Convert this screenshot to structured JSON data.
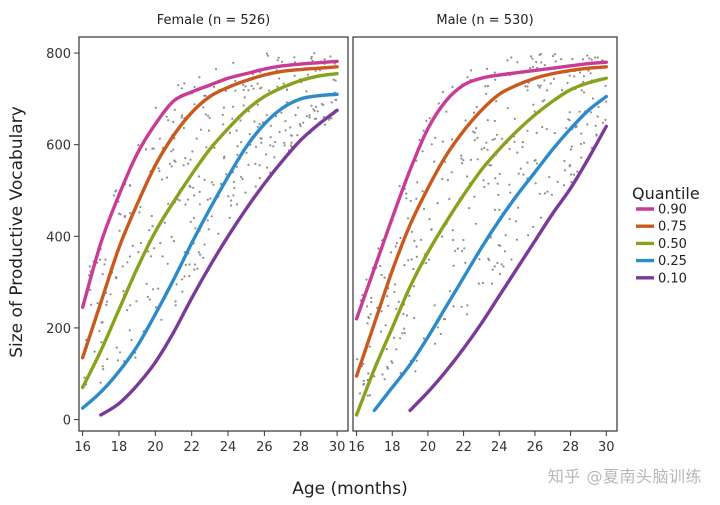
{
  "chart_data": {
    "type": "line",
    "ylabel": "Size of Productive Vocabulary",
    "xlabel": "Age (months)",
    "legend_title": "Quantile",
    "legend_position": "right",
    "x_ticks": [
      16,
      18,
      20,
      22,
      24,
      26,
      28,
      30
    ],
    "y_ticks": [
      0,
      200,
      400,
      600,
      800
    ],
    "xlim": [
      15.8,
      30.6
    ],
    "ylim": [
      -25,
      835
    ],
    "grid": false,
    "series_styles": [
      {
        "name": "0.90",
        "color": "#c83c96"
      },
      {
        "name": "0.75",
        "color": "#c9591c"
      },
      {
        "name": "0.50",
        "color": "#86a31d"
      },
      {
        "name": "0.25",
        "color": "#2c8bc8"
      },
      {
        "name": "0.10",
        "color": "#7a3a98"
      }
    ],
    "panels": [
      {
        "title": "Female (n = 526)",
        "series": [
          {
            "name": "0.90",
            "x": [
              16,
              17,
              18,
              19,
              20,
              21,
              22,
              23,
              24,
              25,
              26,
              27,
              28,
              29,
              30
            ],
            "values": [
              245,
              385,
              490,
              580,
              645,
              695,
              715,
              730,
              745,
              755,
              765,
              772,
              776,
              779,
              782
            ]
          },
          {
            "name": "0.75",
            "x": [
              16,
              17,
              18,
              19,
              20,
              21,
              22,
              23,
              24,
              25,
              26,
              27,
              28,
              29,
              30
            ],
            "values": [
              135,
              255,
              375,
              470,
              555,
              620,
              670,
              705,
              725,
              740,
              752,
              760,
              764,
              767,
              770
            ]
          },
          {
            "name": "0.50",
            "x": [
              16,
              17,
              18,
              19,
              20,
              21,
              22,
              23,
              24,
              25,
              26,
              27,
              28,
              29,
              30
            ],
            "values": [
              70,
              150,
              240,
              330,
              410,
              475,
              535,
              590,
              635,
              675,
              705,
              725,
              740,
              750,
              755
            ]
          },
          {
            "name": "0.25",
            "x": [
              16,
              17,
              18,
              19,
              20,
              21,
              22,
              23,
              24,
              25,
              26,
              27,
              28,
              29,
              30
            ],
            "values": [
              25,
              60,
              105,
              160,
              230,
              305,
              385,
              460,
              530,
              595,
              645,
              680,
              700,
              707,
              710
            ]
          },
          {
            "name": "0.10",
            "x": [
              17,
              18,
              19,
              20,
              21,
              22,
              23,
              24,
              25,
              26,
              27,
              28,
              29,
              30
            ],
            "values": [
              10,
              35,
              75,
              125,
              190,
              265,
              335,
              400,
              460,
              515,
              565,
              610,
              645,
              675
            ]
          }
        ]
      },
      {
        "title": "Male (n = 530)",
        "series": [
          {
            "name": "0.90",
            "x": [
              16,
              17,
              18,
              19,
              20,
              21,
              22,
              23,
              24,
              25,
              26,
              27,
              28,
              29,
              30
            ],
            "values": [
              220,
              330,
              440,
              545,
              635,
              695,
              730,
              745,
              752,
              757,
              762,
              767,
              772,
              777,
              780
            ]
          },
          {
            "name": "0.75",
            "x": [
              16,
              17,
              18,
              19,
              20,
              21,
              22,
              23,
              24,
              25,
              26,
              27,
              28,
              29,
              30
            ],
            "values": [
              95,
              210,
              325,
              425,
              505,
              575,
              630,
              675,
              710,
              730,
              745,
              755,
              762,
              767,
              770
            ]
          },
          {
            "name": "0.50",
            "x": [
              16,
              17,
              18,
              19,
              20,
              21,
              22,
              23,
              24,
              25,
              26,
              27,
              28,
              29,
              30
            ],
            "values": [
              10,
              110,
              200,
              290,
              365,
              430,
              490,
              545,
              590,
              630,
              665,
              695,
              720,
              735,
              745
            ]
          },
          {
            "name": "0.25",
            "x": [
              17,
              18,
              19,
              20,
              21,
              22,
              23,
              24,
              25,
              26,
              27,
              28,
              29,
              30
            ],
            "values": [
              20,
              70,
              120,
              180,
              245,
              310,
              375,
              435,
              490,
              540,
              590,
              635,
              675,
              705
            ]
          },
          {
            "name": "0.10",
            "x": [
              19,
              20,
              21,
              22,
              23,
              24,
              25,
              26,
              27,
              28,
              29,
              30
            ],
            "values": [
              20,
              60,
              105,
              155,
              210,
              270,
              330,
              390,
              450,
              505,
              570,
              640
            ]
          }
        ]
      }
    ]
  },
  "watermark": "知乎 @夏南头脑训练"
}
